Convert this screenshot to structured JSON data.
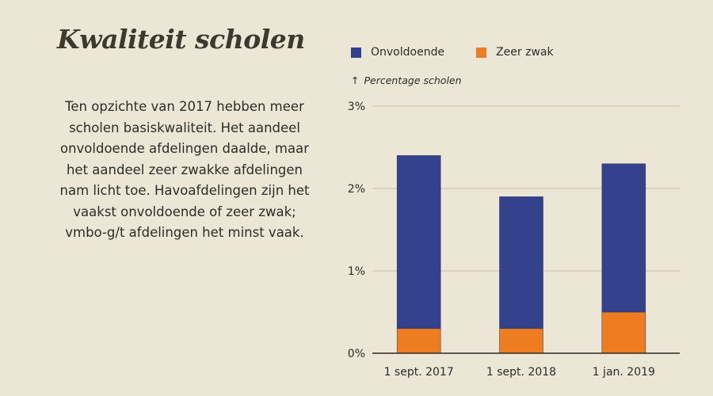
{
  "page": {
    "title": "Kwaliteit scholen",
    "body_lines": [
      "Ten opzichte van 2017 hebben meer",
      "scholen basiskwaliteit. Het aandeel",
      "onvoldoende afdelingen daalde, maar",
      "het aandeel zeer zwakke afdelingen",
      "nam licht toe. Havoafdelingen zijn het",
      "vaakst onvoldoende of zeer zwak;",
      "vmbo-g/t afdelingen het minst vaak."
    ]
  },
  "chart_data": {
    "type": "bar",
    "stacked": true,
    "ylabel": "Percentage scholen",
    "ylabel_arrow": "↑",
    "categories": [
      "1 sept. 2017",
      "1 sept. 2018",
      "1 jan. 2019"
    ],
    "series": [
      {
        "name": "Onvoldoende",
        "color": "#34418c",
        "values": [
          2.1,
          1.6,
          1.8
        ]
      },
      {
        "name": "Zeer zwak",
        "color": "#ee7d22",
        "values": [
          0.3,
          0.3,
          0.5
        ]
      }
    ],
    "ylim": [
      0,
      3
    ],
    "yticks": [
      0,
      1,
      2,
      3
    ],
    "ytick_labels": [
      "0%",
      "1%",
      "2%",
      "3%"
    ],
    "grid": true,
    "legend_position": "top"
  }
}
